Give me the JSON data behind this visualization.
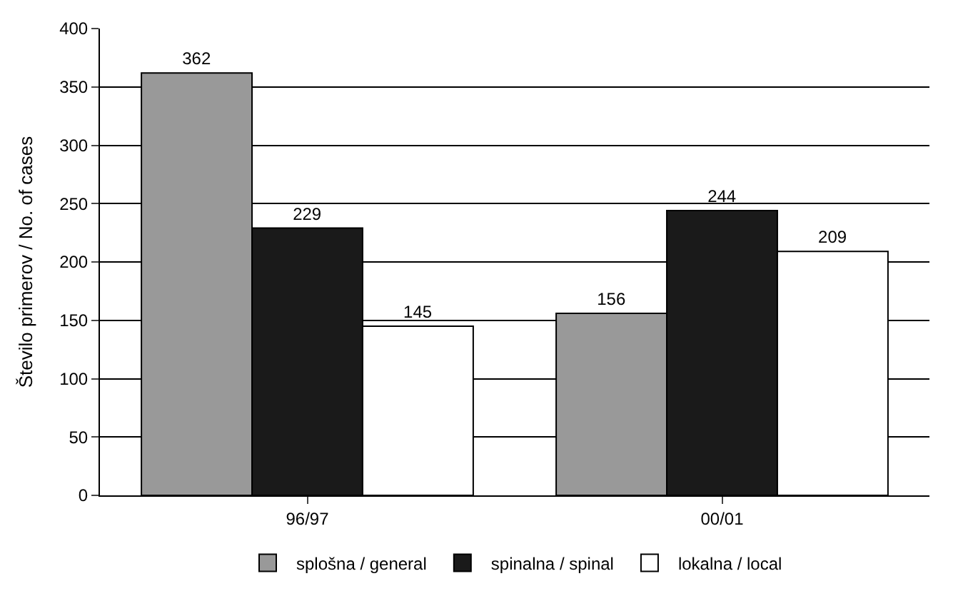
{
  "chart_data": {
    "type": "bar",
    "ylabel": "Število primerov / No. of cases",
    "categories": [
      "96/97",
      "00/01"
    ],
    "series": [
      {
        "name": "splošna / general",
        "color": "#999999",
        "values": [
          362,
          156
        ]
      },
      {
        "name": "spinalna / spinal",
        "color": "#1a1a1a",
        "values": [
          229,
          244
        ]
      },
      {
        "name": "lokalna / local",
        "color": "#ffffff",
        "values": [
          145,
          209
        ]
      }
    ],
    "ylim": [
      0,
      400
    ],
    "yticks": [
      0,
      50,
      100,
      150,
      200,
      250,
      300,
      350,
      400
    ],
    "grid": "y",
    "legend": "bottom",
    "data_labels": true
  }
}
